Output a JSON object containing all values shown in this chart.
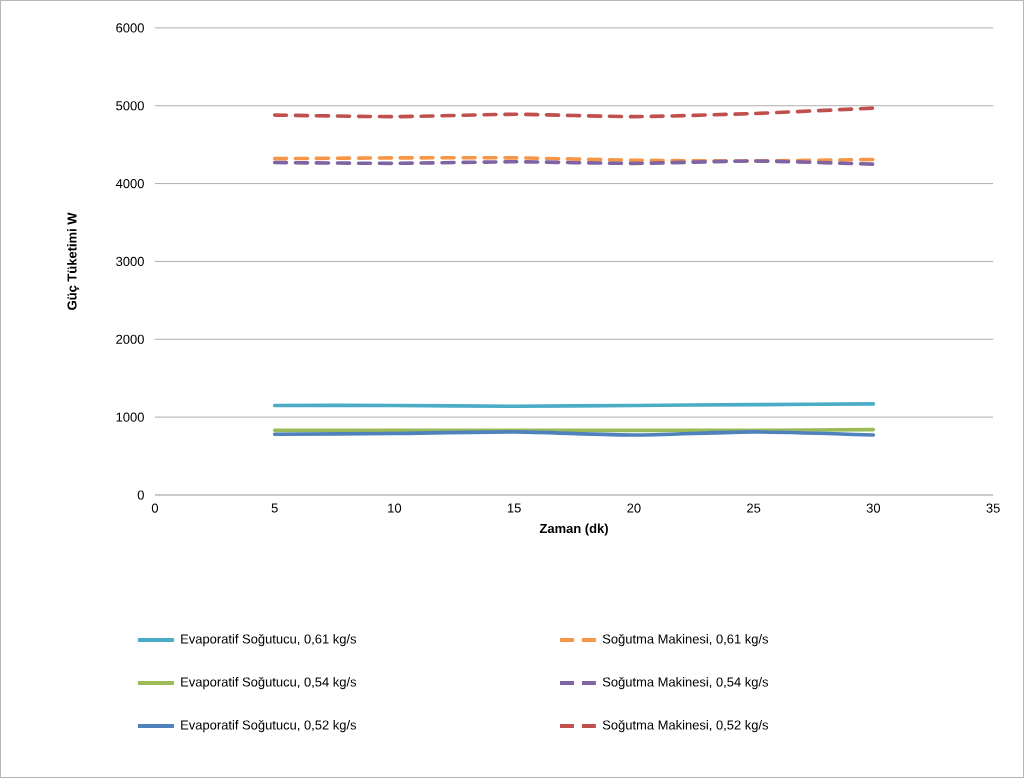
{
  "chart_data": {
    "type": "line",
    "xlabel": "Zaman (dk)",
    "ylabel": "Güç Tüketimi W",
    "x": [
      5,
      10,
      15,
      20,
      25,
      30
    ],
    "xlim": [
      0,
      35
    ],
    "xticks": [
      0,
      5,
      10,
      15,
      20,
      25,
      30,
      35
    ],
    "ylim": [
      0,
      6000
    ],
    "yticks": [
      0,
      1000,
      2000,
      3000,
      4000,
      5000,
      6000
    ],
    "grid": "y",
    "legend": "bottom",
    "marker": "none",
    "series": [
      {
        "name": "Evaporatif Soğutucu, 0,61 kg/s",
        "color": "#4bacc6",
        "line_style": "solid",
        "values": [
          1150,
          1150,
          1140,
          1150,
          1160,
          1170
        ]
      },
      {
        "name": "Evaporatif Soğutucu, 0,54 kg/s",
        "color": "#9bbb59",
        "line_style": "solid",
        "values": [
          830,
          830,
          830,
          830,
          830,
          840
        ]
      },
      {
        "name": "Evaporatif Soğutucu, 0,52 kg/s",
        "color": "#4f81bd",
        "line_style": "solid",
        "values": [
          780,
          790,
          810,
          770,
          810,
          770
        ]
      },
      {
        "name": "Soğutma Makinesi, 0,61 kg/s",
        "color": "#f79646",
        "line_style": "dashed",
        "values": [
          4320,
          4330,
          4330,
          4300,
          4290,
          4310
        ]
      },
      {
        "name": "Soğutma Makinesi, 0,54 kg/s",
        "color": "#8064a2",
        "line_style": "dashed",
        "values": [
          4270,
          4260,
          4280,
          4260,
          4290,
          4250
        ]
      },
      {
        "name": "Soğutma Makinesi, 0,52 kg/s",
        "color": "#c0504d",
        "line_style": "dashed",
        "values": [
          4880,
          4860,
          4890,
          4860,
          4900,
          4970
        ]
      }
    ]
  }
}
